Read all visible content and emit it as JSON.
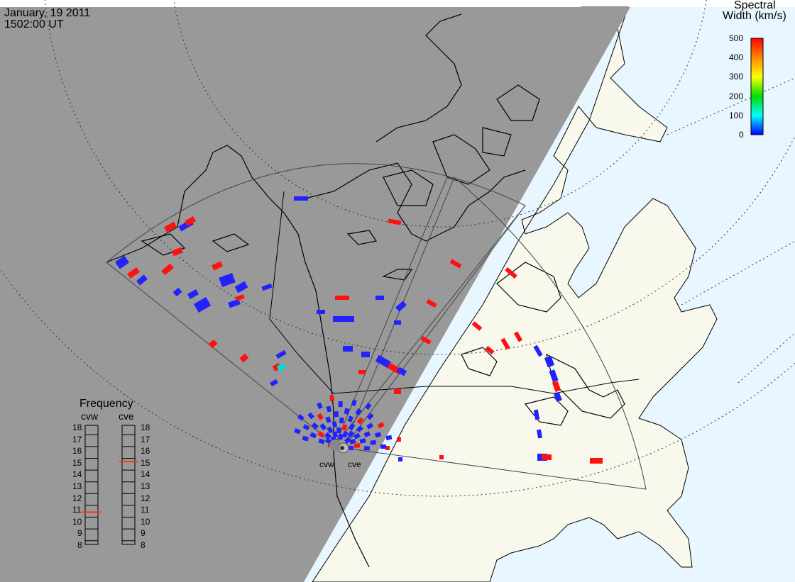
{
  "header": {
    "date": "January, 19 2011",
    "time": "1502:00 UT"
  },
  "colorbar": {
    "title_line1": "Spectral",
    "title_line2": "Width (km/s)",
    "ticks": [
      "500",
      "400",
      "300",
      "200",
      "100",
      "0"
    ],
    "colors": [
      "#ff0000",
      "#ff8800",
      "#ffff00",
      "#00cc00",
      "#00ffff",
      "#0000ff"
    ]
  },
  "radars": {
    "west_label": "cvw",
    "east_label": "cve"
  },
  "frequency_panel": {
    "title": "Frequency",
    "left_radar": "cvw",
    "right_radar": "cve",
    "scale": [
      "18",
      "17",
      "16",
      "15",
      "14",
      "13",
      "12",
      "11",
      "10",
      "9",
      "8"
    ],
    "scale_min": 8,
    "scale_max": 18,
    "cvw_value": 10.8,
    "cve_value": 15.1,
    "marker_color": "#ff3300"
  },
  "colors": {
    "night": "#999999",
    "day_land": "#f8f8ec",
    "ocean": "#e8f6ff",
    "echo_low": "#2222ff",
    "echo_high": "#ff1111",
    "echo_mid": "#00dddd"
  }
}
